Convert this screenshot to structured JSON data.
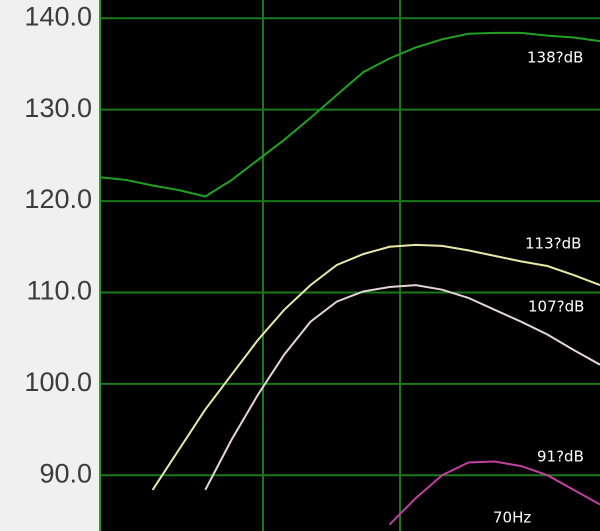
{
  "chart_data": {
    "type": "line",
    "categories": [
      null,
      null,
      null,
      null,
      null,
      null,
      null,
      null,
      null,
      null,
      null,
      null,
      null,
      null,
      null,
      null,
      null,
      null,
      null,
      null
    ],
    "series": [
      {
        "color": "#22a022",
        "values": [
          122.6,
          122.3,
          121.7,
          121.2,
          120.5,
          122.3,
          124.5,
          126.7,
          129.1,
          131.6,
          134.1,
          135.6,
          136.8,
          137.7,
          138.3,
          138.4,
          138.4,
          138.1,
          137.9,
          137.5
        ]
      },
      {
        "color": "#e8e8a8",
        "values": [
          null,
          null,
          88.4,
          92.8,
          97.2,
          101.0,
          104.8,
          108.1,
          110.8,
          113.0,
          114.2,
          115.0,
          115.2,
          115.1,
          114.6,
          114.0,
          113.4,
          112.9,
          111.9,
          110.8
        ]
      },
      {
        "color": "#e4d4d4",
        "values": [
          null,
          null,
          null,
          null,
          88.4,
          93.9,
          98.8,
          103.2,
          106.8,
          109.0,
          110.1,
          110.6,
          110.8,
          110.3,
          109.4,
          108.1,
          106.8,
          105.4,
          103.7,
          102.1
        ]
      },
      {
        "color": "#c040a0",
        "values": [
          null,
          null,
          null,
          null,
          null,
          null,
          null,
          null,
          null,
          null,
          null,
          84.6,
          87.5,
          90.0,
          91.4,
          91.5,
          91.0,
          90.0,
          88.4,
          86.8
        ]
      }
    ],
    "ylim": [
      83.9,
      142.0
    ],
    "yticks": [
      {
        "value": 90,
        "label": "90.0"
      },
      {
        "value": 100,
        "label": "100.0"
      },
      {
        "value": 110,
        "label": "110.0"
      },
      {
        "value": 120,
        "label": "120.0"
      },
      {
        "value": 130,
        "label": "130.0"
      },
      {
        "value": 140,
        "label": "140.0"
      }
    ],
    "grid": true,
    "annotations": [
      "138?dB",
      "113?dB",
      "107?dB",
      "91?dB",
      "70Hz"
    ]
  }
}
